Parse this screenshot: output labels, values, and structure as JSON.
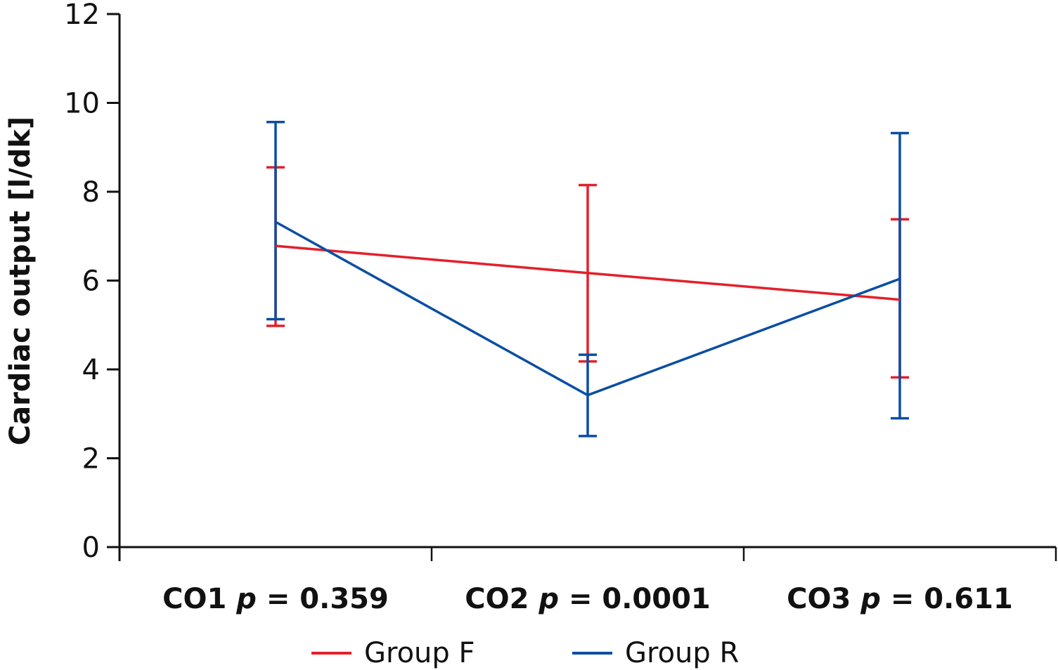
{
  "chart_data": {
    "type": "line",
    "title": "",
    "xlabel": "",
    "ylabel": "Cardiac output [l/dk]",
    "ylim": [
      0,
      12
    ],
    "yticks": [
      "0",
      "2",
      "4",
      "6",
      "8",
      "10",
      "12"
    ],
    "categories": [
      {
        "name": "CO1",
        "p_prefix": "p",
        "p_text": " = 0.359"
      },
      {
        "name": "CO2",
        "p_prefix": "p",
        "p_text": " = 0.0001"
      },
      {
        "name": "CO3",
        "p_prefix": "p",
        "p_text": " = 0.611"
      }
    ],
    "grid": false,
    "legend_position": "bottom",
    "series": [
      {
        "name": "Group F",
        "color": "#e3202a",
        "values": [
          6.78,
          6.17,
          5.57
        ],
        "upper": [
          8.55,
          8.15,
          7.38
        ],
        "lower": [
          4.98,
          4.18,
          3.82
        ]
      },
      {
        "name": "Group R",
        "color": "#0b4ea2",
        "values": [
          7.32,
          3.42,
          6.04
        ],
        "upper": [
          9.57,
          4.33,
          9.32
        ],
        "lower": [
          5.13,
          2.5,
          2.9
        ]
      }
    ]
  }
}
